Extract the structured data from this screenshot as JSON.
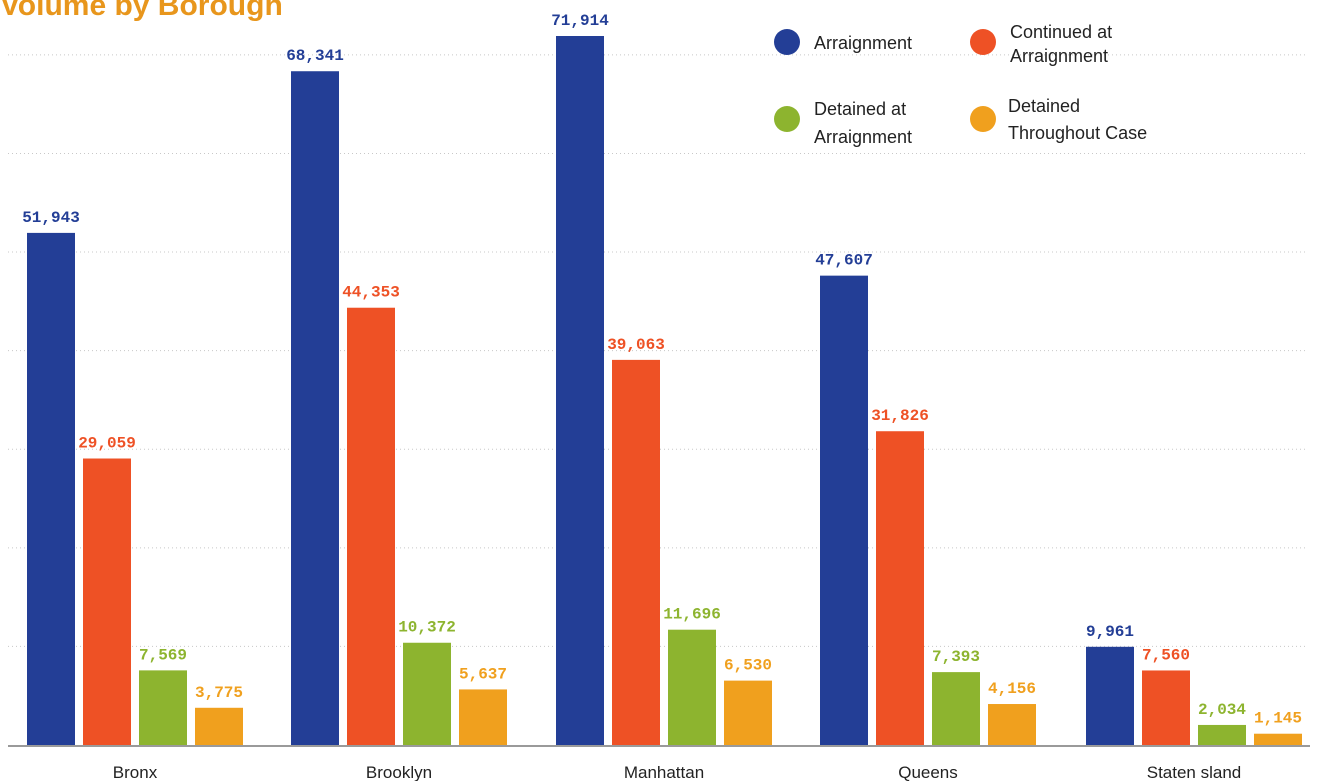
{
  "chart_data": {
    "type": "bar",
    "title": "Volume by Borough",
    "title_color": "#e8961c",
    "categories": [
      "Bronx",
      "Brooklyn",
      "Manhattan",
      "Queens",
      "Staten sland"
    ],
    "series": [
      {
        "name": "Arraignment",
        "legend_lines": [
          "Arraignment"
        ],
        "color": "#233e96",
        "values": [
          51943,
          68341,
          71914,
          47607,
          9961
        ]
      },
      {
        "name": "Continued at Arraignment",
        "legend_lines": [
          "Continued at",
          "Arraignment"
        ],
        "color": "#ee5125",
        "values": [
          29059,
          44353,
          39063,
          31826,
          7560
        ]
      },
      {
        "name": "Detained at Arraignment",
        "legend_lines": [
          "Detained at",
          "Arraignment"
        ],
        "color": "#8db42f",
        "values": [
          7569,
          10372,
          11696,
          7393,
          2034
        ]
      },
      {
        "name": "Detained Throughout Case",
        "legend_lines": [
          "Detained",
          "Throughout Case"
        ],
        "color": "#f0a01e",
        "values": [
          3775,
          5637,
          6530,
          4156,
          1145
        ]
      }
    ],
    "value_labels": [
      [
        "51,943",
        "68,341",
        "71,914",
        "47,607",
        "9,961"
      ],
      [
        "29,059",
        "44,353",
        "39,063",
        "31,826",
        "7,560"
      ],
      [
        "7,569",
        "10,372",
        "11,696",
        "7,393",
        "2,034"
      ],
      [
        "3,775",
        "5,637",
        "6,530",
        "4,156",
        "1,145"
      ]
    ],
    "ylim": [
      0,
      80000
    ],
    "gridlines": "dotted horizontal",
    "legend_position": "top-right",
    "xlabel": "",
    "ylabel": ""
  }
}
